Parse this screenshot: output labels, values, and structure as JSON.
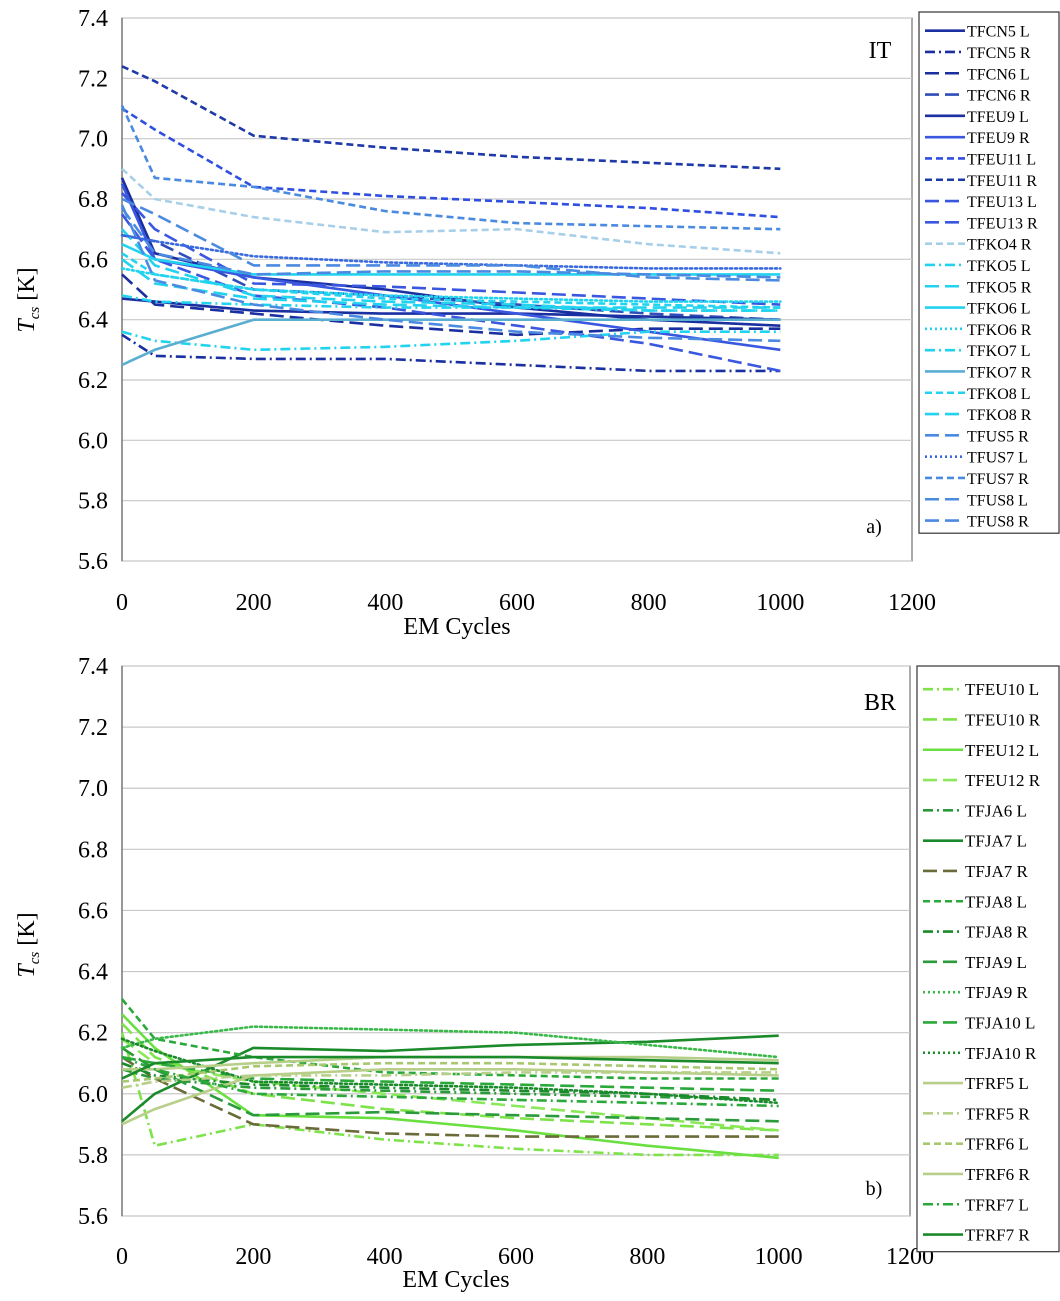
{
  "chart_data": [
    {
      "type": "line",
      "panel_id": "a)",
      "corner_label": "IT",
      "xlabel": "EM Cycles",
      "ylabel_main": "T",
      "ylabel_sub": "cs",
      "ylabel_unit": " [K]",
      "xlim": [
        0,
        1200
      ],
      "ylim": [
        5.6,
        7.4
      ],
      "xticks": [
        "0",
        "200",
        "400",
        "600",
        "800",
        "1000",
        "1200"
      ],
      "yticks": [
        "5.6",
        "5.8",
        "6.0",
        "6.2",
        "6.4",
        "6.6",
        "6.8",
        "7.0",
        "7.2",
        "7.4"
      ],
      "grid": "horizontal",
      "legend_position": "right",
      "series": [
        {
          "name": "TFCN5  L",
          "color": "#1a2fa0",
          "dash": "solid",
          "x": [
            0,
            50,
            200,
            400,
            600,
            800,
            1000
          ],
          "y": [
            6.87,
            6.62,
            6.54,
            6.5,
            6.44,
            6.4,
            6.38
          ]
        },
        {
          "name": "TFCN5 R",
          "color": "#1a2fa0",
          "dash": "dashdot",
          "x": [
            0,
            50,
            200,
            400,
            600,
            800,
            1000
          ],
          "y": [
            6.35,
            6.28,
            6.27,
            6.27,
            6.25,
            6.23,
            6.23
          ]
        },
        {
          "name": "TFCN6 L",
          "color": "#1a2fa0",
          "dash": "longdash",
          "x": [
            0,
            50,
            200,
            400,
            600,
            800,
            1000
          ],
          "y": [
            6.55,
            6.45,
            6.42,
            6.38,
            6.35,
            6.37,
            6.37
          ]
        },
        {
          "name": "TFCN6 R",
          "color": "#2e4fb8",
          "dash": "longdash",
          "x": [
            0,
            50,
            200,
            400,
            600,
            800,
            1000
          ],
          "y": [
            6.68,
            6.66,
            6.5,
            6.48,
            6.45,
            6.42,
            6.4
          ]
        },
        {
          "name": "TFEU9 L",
          "color": "#1a2fa0",
          "dash": "solid",
          "x": [
            0,
            50,
            200,
            400,
            600,
            800,
            1000
          ],
          "y": [
            6.47,
            6.46,
            6.43,
            6.42,
            6.42,
            6.41,
            6.4
          ]
        },
        {
          "name": "TFEU9 R",
          "color": "#3a57e0",
          "dash": "solid",
          "x": [
            0,
            50,
            200,
            400,
            600,
            800,
            1000
          ],
          "y": [
            6.85,
            6.6,
            6.54,
            6.48,
            6.42,
            6.36,
            6.3
          ]
        },
        {
          "name": "TFEU11 L",
          "color": "#2e4fe0",
          "dash": "dashed",
          "x": [
            0,
            50,
            200,
            400,
            600,
            800,
            1000
          ],
          "y": [
            7.1,
            7.03,
            6.84,
            6.81,
            6.79,
            6.77,
            6.74
          ]
        },
        {
          "name": "TFEU11 R",
          "color": "#1e3aa8",
          "dash": "dashed",
          "x": [
            0,
            50,
            200,
            400,
            600,
            800,
            1000
          ],
          "y": [
            7.24,
            7.19,
            7.01,
            6.97,
            6.94,
            6.92,
            6.9
          ]
        },
        {
          "name": "TFEU13 L",
          "color": "#3a57e0",
          "dash": "longdash",
          "x": [
            0,
            50,
            200,
            400,
            600,
            800,
            1000
          ],
          "y": [
            6.75,
            6.6,
            6.48,
            6.44,
            6.38,
            6.32,
            6.23
          ]
        },
        {
          "name": "TFEU13 R",
          "color": "#3a57e0",
          "dash": "longdash",
          "x": [
            0,
            50,
            200,
            400,
            600,
            800,
            1000
          ],
          "y": [
            6.82,
            6.7,
            6.52,
            6.51,
            6.49,
            6.47,
            6.45
          ]
        },
        {
          "name": "TFKO4 R",
          "color": "#a8cfe8",
          "dash": "dashed",
          "x": [
            0,
            50,
            200,
            400,
            600,
            800,
            1000
          ],
          "y": [
            6.9,
            6.8,
            6.74,
            6.69,
            6.7,
            6.65,
            6.62
          ]
        },
        {
          "name": "TFKO5 L",
          "color": "#22d3f0",
          "dash": "dashdot",
          "x": [
            0,
            50,
            200,
            400,
            600,
            800,
            1000
          ],
          "y": [
            6.36,
            6.33,
            6.3,
            6.31,
            6.33,
            6.36,
            6.36
          ]
        },
        {
          "name": "TFKO5 R",
          "color": "#22d3f0",
          "dash": "longdash",
          "x": [
            0,
            50,
            200,
            400,
            600,
            800,
            1000
          ],
          "y": [
            6.7,
            6.58,
            6.48,
            6.46,
            6.45,
            6.43,
            6.43
          ]
        },
        {
          "name": "TFKO6 L",
          "color": "#22d3f0",
          "dash": "solid",
          "x": [
            0,
            50,
            200,
            400,
            600,
            800,
            1000
          ],
          "y": [
            6.65,
            6.6,
            6.55,
            6.55,
            6.55,
            6.55,
            6.55
          ]
        },
        {
          "name": "TFKO6 R",
          "color": "#22d3f0",
          "dash": "dotted",
          "x": [
            0,
            50,
            200,
            400,
            600,
            800,
            1000
          ],
          "y": [
            6.57,
            6.55,
            6.5,
            6.48,
            6.47,
            6.46,
            6.46
          ]
        },
        {
          "name": "TFKO7 L",
          "color": "#22d3f0",
          "dash": "dashdot",
          "x": [
            0,
            50,
            200,
            400,
            600,
            800,
            1000
          ],
          "y": [
            6.48,
            6.46,
            6.45,
            6.44,
            6.44,
            6.43,
            6.43
          ]
        },
        {
          "name": "TFKO7 R",
          "color": "#5aaed0",
          "dash": "solid",
          "x": [
            0,
            50,
            200,
            400,
            600,
            800,
            1000
          ],
          "y": [
            6.25,
            6.3,
            6.4,
            6.4,
            6.4,
            6.4,
            6.4
          ]
        },
        {
          "name": "TFKO8 L",
          "color": "#22d3f0",
          "dash": "dashed",
          "x": [
            0,
            50,
            200,
            400,
            600,
            800,
            1000
          ],
          "y": [
            6.62,
            6.55,
            6.5,
            6.47,
            6.46,
            6.45,
            6.44
          ]
        },
        {
          "name": "TFKO8 R",
          "color": "#22d3f0",
          "dash": "longdash",
          "x": [
            0,
            50,
            200,
            400,
            600,
            800,
            1000
          ],
          "y": [
            6.6,
            6.52,
            6.47,
            6.45,
            6.44,
            6.44,
            6.44
          ]
        },
        {
          "name": "TFUS5 R",
          "color": "#4a8ae0",
          "dash": "longdash",
          "x": [
            0,
            50,
            200,
            400,
            600,
            800,
            1000
          ],
          "y": [
            6.77,
            6.62,
            6.55,
            6.56,
            6.56,
            6.55,
            6.54
          ]
        },
        {
          "name": "TFUS7 L",
          "color": "#3a6ae0",
          "dash": "dotted",
          "x": [
            0,
            50,
            200,
            400,
            600,
            800,
            1000
          ],
          "y": [
            6.68,
            6.66,
            6.61,
            6.59,
            6.58,
            6.57,
            6.57
          ]
        },
        {
          "name": "TFUS7 R",
          "color": "#4a8ae0",
          "dash": "dashed",
          "x": [
            0,
            50,
            200,
            400,
            600,
            800,
            1000
          ],
          "y": [
            7.11,
            6.87,
            6.84,
            6.76,
            6.72,
            6.71,
            6.7
          ]
        },
        {
          "name": "TFUS8 L",
          "color": "#4a8ae0",
          "dash": "longdash",
          "x": [
            0,
            50,
            200,
            400,
            600,
            800,
            1000
          ],
          "y": [
            6.8,
            6.75,
            6.58,
            6.58,
            6.58,
            6.54,
            6.53
          ]
        },
        {
          "name": "TFUS8 R",
          "color": "#4a8ae0",
          "dash": "longdash",
          "x": [
            0,
            50,
            200,
            400,
            600,
            800,
            1000
          ],
          "y": [
            6.78,
            6.53,
            6.45,
            6.4,
            6.36,
            6.34,
            6.33
          ]
        }
      ]
    },
    {
      "type": "line",
      "panel_id": "b)",
      "corner_label": "BR",
      "xlabel": "EM Cycles",
      "ylabel_main": "T",
      "ylabel_sub": "cs",
      "ylabel_unit": " [K]",
      "xlim": [
        0,
        1200
      ],
      "ylim": [
        5.6,
        7.4
      ],
      "xticks": [
        "0",
        "200",
        "400",
        "600",
        "800",
        "1000",
        "1200"
      ],
      "yticks": [
        "5.6",
        "5.8",
        "6.0",
        "6.2",
        "6.4",
        "6.6",
        "6.8",
        "7.0",
        "7.2",
        "7.4"
      ],
      "grid": "horizontal",
      "legend_position": "right",
      "series": [
        {
          "name": "TFEU10 L",
          "color": "#7ee24a",
          "dash": "dashdot",
          "x": [
            0,
            50,
            200,
            400,
            600,
            800,
            1000
          ],
          "y": [
            6.2,
            5.83,
            5.9,
            5.85,
            5.82,
            5.8,
            5.8
          ]
        },
        {
          "name": "TFEU10 R",
          "color": "#7ee24a",
          "dash": "longdash",
          "x": [
            0,
            50,
            200,
            400,
            600,
            800,
            1000
          ],
          "y": [
            6.23,
            6.12,
            6.0,
            5.95,
            5.92,
            5.9,
            5.88
          ]
        },
        {
          "name": "TFEU12 L",
          "color": "#6ae040",
          "dash": "solid",
          "x": [
            0,
            50,
            200,
            400,
            600,
            800,
            1000
          ],
          "y": [
            6.26,
            6.15,
            5.93,
            5.92,
            5.88,
            5.83,
            5.79
          ]
        },
        {
          "name": "TFEU12 R",
          "color": "#8ae85a",
          "dash": "longdash",
          "x": [
            0,
            50,
            200,
            400,
            600,
            800,
            1000
          ],
          "y": [
            6.18,
            6.1,
            6.04,
            6.0,
            5.96,
            5.92,
            5.88
          ]
        },
        {
          "name": "TFJA6 L",
          "color": "#2a9a3a",
          "dash": "dashdot",
          "x": [
            0,
            50,
            200,
            400,
            600,
            800,
            1000
          ],
          "y": [
            6.08,
            6.05,
            6.02,
            6.01,
            6.0,
            5.99,
            5.98
          ]
        },
        {
          "name": "TFJA7 L",
          "color": "#1a8a2a",
          "dash": "solid",
          "x": [
            0,
            50,
            200,
            400,
            600,
            800,
            1000
          ],
          "y": [
            5.91,
            6.0,
            6.15,
            6.14,
            6.16,
            6.17,
            6.19
          ]
        },
        {
          "name": "TFJA7 R",
          "color": "#6b6b3a",
          "dash": "longdash",
          "x": [
            0,
            50,
            200,
            400,
            600,
            800,
            1000
          ],
          "y": [
            6.12,
            6.05,
            5.9,
            5.87,
            5.86,
            5.86,
            5.86
          ]
        },
        {
          "name": "TFJA8 L",
          "color": "#2aa83a",
          "dash": "dashed",
          "x": [
            0,
            50,
            200,
            400,
            600,
            800,
            1000
          ],
          "y": [
            6.31,
            6.18,
            6.12,
            6.07,
            6.06,
            6.05,
            6.05
          ]
        },
        {
          "name": "TFJA8 R",
          "color": "#1a8a2a",
          "dash": "dashdot",
          "x": [
            0,
            50,
            200,
            400,
            600,
            800,
            1000
          ],
          "y": [
            6.1,
            6.06,
            6.03,
            6.02,
            6.01,
            6.0,
            5.98
          ]
        },
        {
          "name": "TFJA9 L",
          "color": "#2a9a3a",
          "dash": "longdash",
          "x": [
            0,
            50,
            200,
            400,
            600,
            800,
            1000
          ],
          "y": [
            6.15,
            6.08,
            5.93,
            5.94,
            5.93,
            5.92,
            5.91
          ]
        },
        {
          "name": "TFJA9 R",
          "color": "#3ab84a",
          "dash": "dotted",
          "x": [
            0,
            50,
            200,
            400,
            600,
            800,
            1000
          ],
          "y": [
            6.15,
            6.18,
            6.22,
            6.21,
            6.2,
            6.16,
            6.12
          ]
        },
        {
          "name": "TFJA10 L",
          "color": "#2aa83a",
          "dash": "longdash",
          "x": [
            0,
            50,
            200,
            400,
            600,
            800,
            1000
          ],
          "y": [
            6.12,
            6.1,
            6.05,
            6.04,
            6.03,
            6.02,
            6.01
          ]
        },
        {
          "name": "TFJA10 R",
          "color": "#1a8a2a",
          "dash": "dotted",
          "x": [
            0,
            50,
            200,
            400,
            600,
            800,
            1000
          ],
          "y": [
            6.18,
            6.14,
            6.04,
            6.03,
            6.02,
            6.0,
            5.97
          ]
        },
        {
          "name": "TFRF5 L",
          "color": "#b8cf8a",
          "dash": "solid",
          "x": [
            0,
            50,
            200,
            400,
            600,
            800,
            1000
          ],
          "y": [
            5.9,
            5.95,
            6.06,
            6.08,
            6.08,
            6.07,
            6.06
          ]
        },
        {
          "name": "TFRF5 R",
          "color": "#b8cf8a",
          "dash": "dashdot",
          "x": [
            0,
            50,
            200,
            400,
            600,
            800,
            1000
          ],
          "y": [
            6.02,
            6.04,
            6.06,
            6.06,
            6.07,
            6.07,
            6.07
          ]
        },
        {
          "name": "TFRF6 L",
          "color": "#a8c870",
          "dash": "dashed",
          "x": [
            0,
            50,
            200,
            400,
            600,
            800,
            1000
          ],
          "y": [
            6.04,
            6.05,
            6.09,
            6.1,
            6.1,
            6.09,
            6.08
          ]
        },
        {
          "name": "TFRF6 R",
          "color": "#b8cf8a",
          "dash": "solid",
          "x": [
            0,
            50,
            200,
            400,
            600,
            800,
            1000
          ],
          "y": [
            6.08,
            6.08,
            6.1,
            6.12,
            6.12,
            6.12,
            6.11
          ]
        },
        {
          "name": "TFRF7 L",
          "color": "#2aa83a",
          "dash": "dashdot",
          "x": [
            0,
            50,
            200,
            400,
            600,
            800,
            1000
          ],
          "y": [
            6.12,
            6.08,
            6.0,
            5.99,
            5.98,
            5.97,
            5.96
          ]
        },
        {
          "name": "TFRF7 R",
          "color": "#1a8a2a",
          "dash": "solid",
          "x": [
            0,
            50,
            200,
            400,
            600,
            800,
            1000
          ],
          "y": [
            6.05,
            6.1,
            6.12,
            6.12,
            6.12,
            6.11,
            6.1
          ]
        }
      ]
    }
  ]
}
